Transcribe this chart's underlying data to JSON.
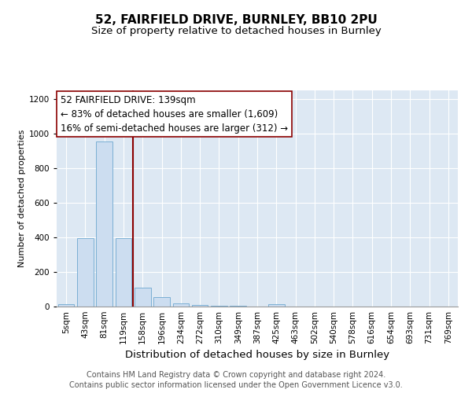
{
  "title1": "52, FAIRFIELD DRIVE, BURNLEY, BB10 2PU",
  "title2": "Size of property relative to detached houses in Burnley",
  "xlabel": "Distribution of detached houses by size in Burnley",
  "ylabel": "Number of detached properties",
  "categories": [
    "5sqm",
    "43sqm",
    "81sqm",
    "119sqm",
    "158sqm",
    "196sqm",
    "234sqm",
    "272sqm",
    "310sqm",
    "349sqm",
    "387sqm",
    "425sqm",
    "463sqm",
    "502sqm",
    "540sqm",
    "578sqm",
    "616sqm",
    "654sqm",
    "693sqm",
    "731sqm",
    "769sqm"
  ],
  "values": [
    13,
    395,
    955,
    395,
    110,
    55,
    18,
    10,
    5,
    3,
    0,
    15,
    0,
    0,
    0,
    0,
    0,
    0,
    0,
    0,
    0
  ],
  "bar_color": "#ccddf0",
  "bar_edge_color": "#7bafd4",
  "vline_x_index": 3.5,
  "vline_color": "#8b0000",
  "annotation_line1": "52 FAIRFIELD DRIVE: 139sqm",
  "annotation_line2": "← 83% of detached houses are smaller (1,609)",
  "annotation_line3": "16% of semi-detached houses are larger (312) →",
  "annotation_box_color": "white",
  "annotation_box_edgecolor": "#8b0000",
  "annotation_fontsize": 8.5,
  "ylim": [
    0,
    1250
  ],
  "yticks": [
    0,
    200,
    400,
    600,
    800,
    1000,
    1200
  ],
  "background_color": "#dde8f3",
  "grid_color": "#ffffff",
  "footer1": "Contains HM Land Registry data © Crown copyright and database right 2024.",
  "footer2": "Contains public sector information licensed under the Open Government Licence v3.0.",
  "title1_fontsize": 11,
  "title2_fontsize": 9.5,
  "xlabel_fontsize": 9.5,
  "ylabel_fontsize": 8,
  "tick_fontsize": 7.5,
  "footer_fontsize": 7
}
